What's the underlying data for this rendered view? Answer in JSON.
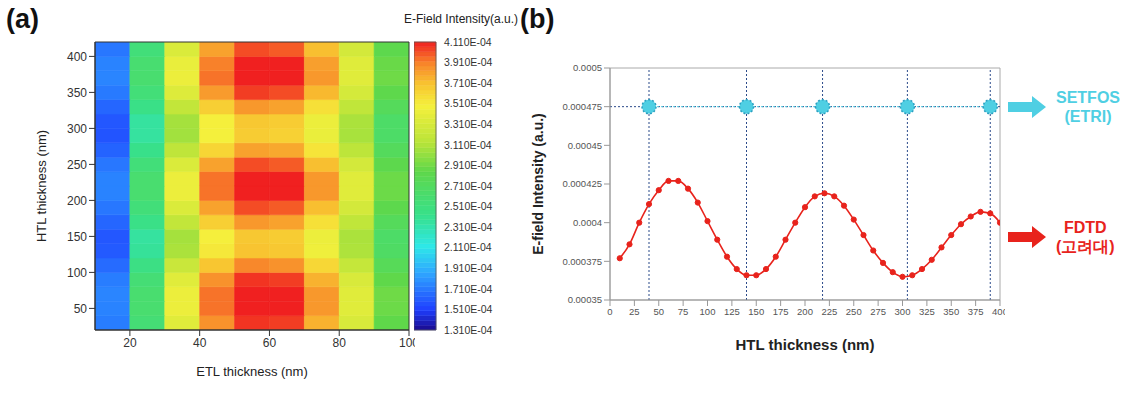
{
  "chart_data": [
    {
      "type": "heatmap",
      "title": "(a)",
      "x_label": "ETL thickness (nm)",
      "y_label": "HTL thickness (nm)",
      "x": [
        15,
        25,
        35,
        45,
        55,
        65,
        75,
        85,
        95
      ],
      "y": [
        30,
        50,
        70,
        90,
        110,
        130,
        150,
        170,
        190,
        210,
        230,
        250,
        270,
        290,
        310,
        330,
        350,
        370,
        390,
        410
      ],
      "values": [
        [
          0.000172,
          0.000257,
          0.000337,
          0.000386,
          0.000407,
          0.000405,
          0.000376,
          0.000332,
          0.000285
        ],
        [
          0.000174,
          0.000261,
          0.000344,
          0.000394,
          0.000416,
          0.000413,
          0.000384,
          0.000337,
          0.000289
        ],
        [
          0.000175,
          0.000261,
          0.000344,
          0.000394,
          0.000417,
          0.000414,
          0.000384,
          0.000337,
          0.00029
        ],
        [
          0.000172,
          0.000257,
          0.000337,
          0.000386,
          0.000407,
          0.000405,
          0.000376,
          0.000332,
          0.000285
        ],
        [
          0.000166,
          0.000247,
          0.000323,
          0.000369,
          0.000389,
          0.000386,
          0.000361,
          0.000321,
          0.000276
        ],
        [
          0.00016,
          0.000238,
          0.000309,
          0.000353,
          0.00037,
          0.000368,
          0.000346,
          0.00031,
          0.000268
        ],
        [
          0.000159,
          0.000236,
          0.000307,
          0.00035,
          0.000368,
          0.000366,
          0.000344,
          0.000309,
          0.000266
        ],
        [
          0.000164,
          0.000245,
          0.000319,
          0.000365,
          0.000384,
          0.000381,
          0.000357,
          0.000318,
          0.000274
        ],
        [
          0.00017,
          0.000254,
          0.000333,
          0.000381,
          0.000402,
          0.000399,
          0.000372,
          0.000329,
          0.000283
        ],
        [
          0.000174,
          0.000261,
          0.000344,
          0.000394,
          0.000416,
          0.000413,
          0.000384,
          0.000337,
          0.000289
        ],
        [
          0.000174,
          0.000261,
          0.000344,
          0.000394,
          0.000416,
          0.000413,
          0.000384,
          0.000337,
          0.000289
        ],
        [
          0.00017,
          0.000254,
          0.000333,
          0.000381,
          0.000402,
          0.000399,
          0.000372,
          0.000329,
          0.000283
        ],
        [
          0.000163,
          0.000243,
          0.000317,
          0.000362,
          0.000381,
          0.000379,
          0.000355,
          0.000316,
          0.000273
        ],
        [
          0.000158,
          0.000236,
          0.000306,
          0.000349,
          0.000366,
          0.000364,
          0.000343,
          0.000308,
          0.000266
        ],
        [
          0.000159,
          0.000236,
          0.000307,
          0.00035,
          0.000368,
          0.000366,
          0.000344,
          0.000309,
          0.000266
        ],
        [
          0.000164,
          0.000245,
          0.000319,
          0.000365,
          0.000384,
          0.000381,
          0.000357,
          0.000318,
          0.000274
        ],
        [
          0.000171,
          0.000255,
          0.000335,
          0.000383,
          0.000405,
          0.000402,
          0.000374,
          0.00033,
          0.000284
        ],
        [
          0.000175,
          0.000261,
          0.000344,
          0.000394,
          0.000417,
          0.000414,
          0.000384,
          0.000337,
          0.00029
        ],
        [
          0.000174,
          0.00026,
          0.000342,
          0.000391,
          0.000414,
          0.000411,
          0.000382,
          0.000336,
          0.000288
        ],
        [
          0.00017,
          0.000254,
          0.000333,
          0.000381,
          0.000402,
          0.000399,
          0.000372,
          0.000329,
          0.000283
        ]
      ],
      "xlim": [
        10,
        100
      ],
      "xticks": [
        20,
        40,
        60,
        80,
        100
      ],
      "ylim": [
        20,
        420
      ],
      "yticks": [
        50,
        100,
        150,
        200,
        250,
        300,
        350,
        400
      ],
      "colorbar": {
        "label": "E-Field Intensity(a.u.)",
        "range": [
          0.000131,
          0.000411
        ],
        "ticks": [
          {
            "value": 0.000131,
            "label": "1.310E-04"
          },
          {
            "value": 0.000151,
            "label": "1.510E-04"
          },
          {
            "value": 0.000171,
            "label": "1.710E-04"
          },
          {
            "value": 0.000191,
            "label": "1.910E-04"
          },
          {
            "value": 0.000211,
            "label": "2.110E-04"
          },
          {
            "value": 0.000231,
            "label": "2.310E-04"
          },
          {
            "value": 0.000251,
            "label": "2.510E-04"
          },
          {
            "value": 0.000271,
            "label": "2.710E-04"
          },
          {
            "value": 0.000291,
            "label": "2.910E-04"
          },
          {
            "value": 0.000311,
            "label": "3.110E-04"
          },
          {
            "value": 0.000331,
            "label": "3.310E-04"
          },
          {
            "value": 0.000351,
            "label": "3.510E-04"
          },
          {
            "value": 0.000371,
            "label": "3.710E-04"
          },
          {
            "value": 0.000391,
            "label": "3.910E-04"
          },
          {
            "value": 0.000411,
            "label": "4.110E-04"
          }
        ]
      }
    },
    {
      "type": "line",
      "title": "(b)",
      "x_label": "HTL thickness (nm)",
      "y_label": "E-field Intensity (a.u.)",
      "xlim": [
        0,
        400
      ],
      "xticks": [
        0,
        25,
        50,
        75,
        100,
        125,
        150,
        175,
        200,
        225,
        250,
        275,
        300,
        325,
        350,
        375,
        400
      ],
      "ylim": [
        0.00035,
        0.0005
      ],
      "yticks": [
        0.00035,
        0.000375,
        0.0004,
        0.000425,
        0.00045,
        0.000475,
        0.0005
      ],
      "series": [
        {
          "name": "SETFOS (ETRI)",
          "color": "#4fcfe3",
          "marker": "circle",
          "line_style": "dotted",
          "x": [
            40,
            140,
            218,
            305,
            390
          ],
          "values": [
            0.000475,
            0.000475,
            0.000475,
            0.000475,
            0.000475
          ]
        },
        {
          "name": "FDTD (고려대)",
          "color": "#e8231c",
          "marker": "circle",
          "line_style": "solid",
          "x": [
            10,
            20,
            30,
            40,
            50,
            60,
            70,
            80,
            90,
            100,
            110,
            120,
            130,
            140,
            150,
            160,
            170,
            180,
            190,
            200,
            210,
            220,
            230,
            240,
            250,
            260,
            270,
            280,
            290,
            300,
            310,
            320,
            330,
            340,
            350,
            360,
            370,
            380,
            390,
            400
          ],
          "values": [
            0.000377,
            0.000386,
            0.0004,
            0.000412,
            0.000421,
            0.000427,
            0.000427,
            0.000422,
            0.000413,
            0.000401,
            0.000389,
            0.000378,
            0.00037,
            0.000366,
            0.000366,
            0.00037,
            0.000378,
            0.000389,
            0.0004,
            0.00041,
            0.000417,
            0.000419,
            0.000417,
            0.000411,
            0.000402,
            0.000392,
            0.000382,
            0.000374,
            0.000368,
            0.000365,
            0.000366,
            0.00037,
            0.000376,
            0.000384,
            0.000392,
            0.000399,
            0.000404,
            0.000407,
            0.000406,
            0.0004
          ]
        }
      ]
    }
  ]
}
